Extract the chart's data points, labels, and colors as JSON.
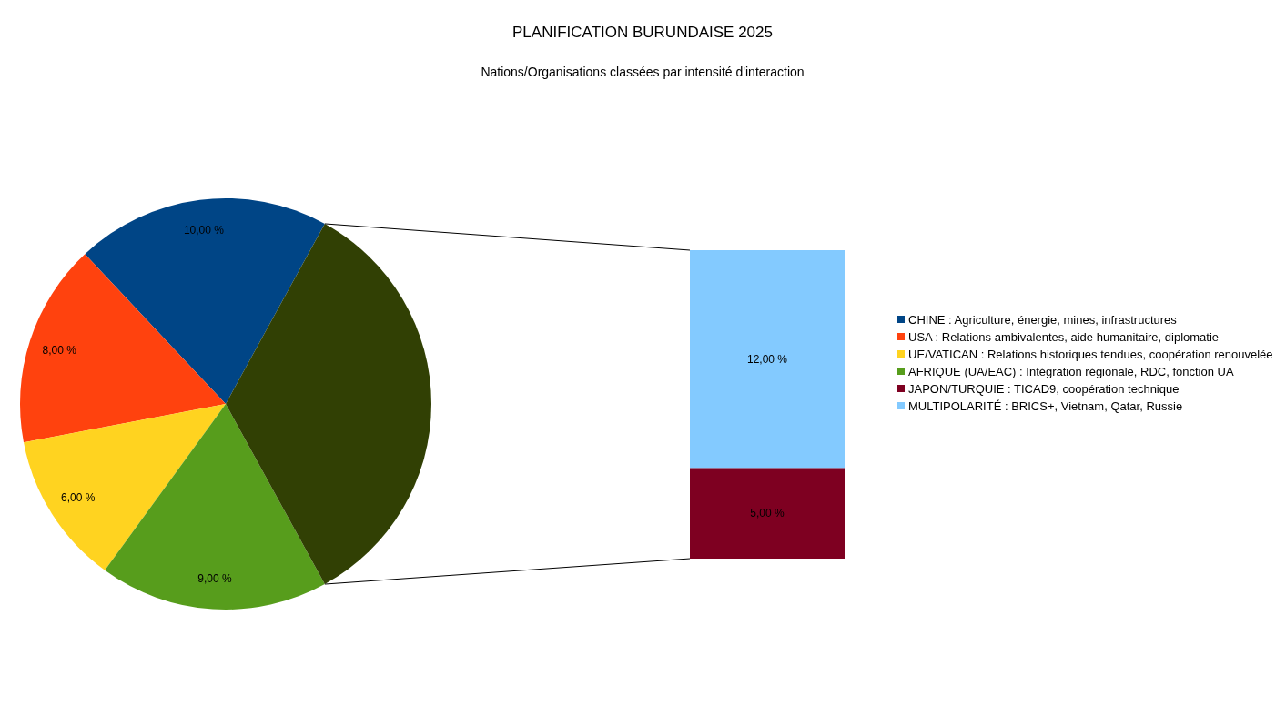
{
  "chart_data": [
    {
      "type": "pie",
      "title": "PLANIFICATION BURUNDAISE 2025",
      "subtitle": "Nations/Organisations classées par intensité d'interaction",
      "categories": [
        "CHINE : Agriculture, énergie, mines, infrastructures",
        "USA : Relations ambivalentes, aide humanitaire, diplomatie",
        "UE/VATICAN : Relations historiques tendues, coopération renouvelée",
        "AFRIQUE (UA/EAC) : Intégration régionale, RDC, fonction UA",
        null
      ],
      "values": [
        10,
        8,
        6,
        9,
        17
      ],
      "colors": [
        "#004586",
        "#ff420e",
        "#ffd320",
        "#579d1c",
        "#314004"
      ],
      "value_labels": [
        "10,00 %",
        "8,00 %",
        "6,00 %",
        "9,00 %",
        null
      ],
      "legend": "right"
    },
    {
      "type": "bar",
      "stacked": true,
      "categories": [
        null
      ],
      "series": [
        {
          "name": "JAPON/TURQUIE : TICAD9, coopération technique",
          "color": "#7e0021",
          "values": [
            5
          ],
          "value_labels": [
            "5,00 %"
          ]
        },
        {
          "name": "MULTIPOLARITÉ : BRICS+, Vietnam, Qatar, Russie",
          "color": "#83caff",
          "values": [
            12
          ],
          "value_labels": [
            "12,00 %"
          ]
        }
      ],
      "legend": "right"
    }
  ]
}
